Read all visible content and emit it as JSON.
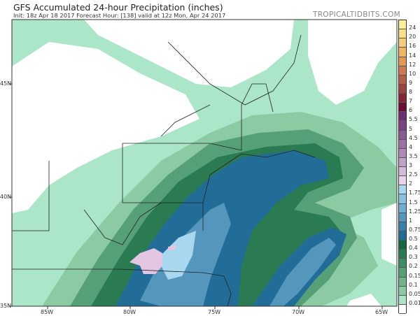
{
  "header": {
    "title": "GFS Accumulated 24-hour Precipitation (inches)",
    "subtitle": "Init: 18z Apr 18 2017   Forecast Hour: [138]   valid at 12z Mon, Apr 24 2017",
    "brand": "TROPICALTIDBITS.COM"
  },
  "axes": {
    "longitude_labels": [
      "85W",
      "80W",
      "75W",
      "70W",
      "65W"
    ],
    "latitude_labels": [
      "45N",
      "40N",
      "35N"
    ]
  },
  "colorbar": {
    "labels": [
      "24",
      "20",
      "16",
      "14",
      "12",
      "10",
      "9",
      "8",
      "7",
      "6",
      "5.5",
      "5",
      "4.5",
      "4",
      "3.5",
      "3",
      "2.5",
      "2",
      "1.75",
      "1.5",
      "1.25",
      "1",
      "0.75",
      "0.5",
      "0.4",
      "0.3",
      "0.2",
      "0.15",
      "0.1",
      "0.05",
      "0.01"
    ],
    "colors": [
      "#fbf09a",
      "#f8e08a",
      "#f5cf78",
      "#f0b860",
      "#e09a58",
      "#cc7c50",
      "#b06048",
      "#984440",
      "#802838",
      "#6a1034",
      "#6a3070",
      "#7a4484",
      "#8a5a94",
      "#9c72a6",
      "#ae8ab8",
      "#c0a2c8",
      "#d4bcd8",
      "#ecd4ec",
      "#a8d8f0",
      "#88c2e0",
      "#6eaed0",
      "#5496bc",
      "#3a80aa",
      "#226c98",
      "#166640",
      "#2a7a52",
      "#3e8c64",
      "#56a078",
      "#70b48c",
      "#8ccaa4",
      "#abe6c8",
      "#ffffff"
    ]
  },
  "map_colors": {
    "land_none": "#ffffff",
    "p001": "#abe6c8",
    "p01": "#8ccaa4",
    "p02": "#56a078",
    "p04": "#2a7a52",
    "p05": "#166640",
    "p075": "#226c98",
    "p1": "#3a80aa",
    "p125": "#5496bc",
    "p15": "#6eaed0",
    "p175": "#a8d8f0",
    "p2": "#e2c6e2"
  }
}
